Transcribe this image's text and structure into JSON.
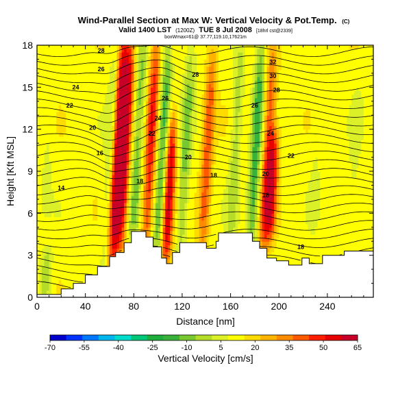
{
  "chart_data": {
    "type": "heatmap",
    "title": "Wind-Parallel Section at Max W: Vertical Velocity & Pot.Temp.",
    "title_mark": "(C)",
    "subtitle_main": "Valid 1400 LST",
    "subtitle_z": "(1200Z)",
    "subtitle_date": "TUE 8 Jul 2008",
    "subtitle_run": "[18hrl cst@2339]",
    "subtitle_loc": "boxWmax=61@ 37.77,119.10,17621m",
    "xlabel": "Distance [nm]",
    "ylabel": "Height [Kft MSL]",
    "xlim": [
      0,
      278
    ],
    "ylim": [
      0,
      18
    ],
    "xticks": [
      0,
      40,
      80,
      120,
      160,
      200,
      240
    ],
    "yticks": [
      0,
      3,
      6,
      9,
      12,
      15,
      18
    ],
    "colorbar": {
      "label": "Vertical Velocity [cm/s]",
      "ticks": [
        -70,
        -55,
        -40,
        -25,
        -10,
        5,
        20,
        35,
        50,
        65
      ],
      "range": [
        -70,
        65
      ],
      "colors": [
        "#0000cc",
        "#0033ff",
        "#0077ff",
        "#00b4ee",
        "#00dccc",
        "#00c878",
        "#1fae3a",
        "#38b23a",
        "#78c830",
        "#b4dc28",
        "#dcf028",
        "#ffff00",
        "#ffdc00",
        "#ffb400",
        "#ff8c00",
        "#ff5a00",
        "#ff1e00",
        "#e60000",
        "#c80028"
      ]
    },
    "fields": {
      "background_w": 12,
      "updrafts": [
        {
          "x": 66,
          "z_min": 3,
          "z_max": 18,
          "w": 55
        },
        {
          "x": 72,
          "z_min": 4,
          "z_max": 18,
          "w": 45
        },
        {
          "x": 93,
          "z_min": 4,
          "z_max": 18,
          "w": 38
        },
        {
          "x": 110,
          "z_min": 3,
          "z_max": 12,
          "w": 48
        },
        {
          "x": 140,
          "z_min": 4,
          "z_max": 17,
          "w": 30
        },
        {
          "x": 190,
          "z_min": 4,
          "z_max": 17,
          "w": 32
        },
        {
          "x": 195,
          "z_min": 5,
          "z_max": 11,
          "w": 40
        }
      ],
      "downdrafts": [
        {
          "x": 60,
          "z_min": 3,
          "z_max": 18,
          "w": -12
        },
        {
          "x": 82,
          "z_min": 4,
          "z_max": 18,
          "w": -22
        },
        {
          "x": 103,
          "z_min": 3,
          "z_max": 18,
          "w": -28
        },
        {
          "x": 122,
          "z_min": 3,
          "z_max": 18,
          "w": -20
        },
        {
          "x": 163,
          "z_min": 4,
          "z_max": 18,
          "w": -15
        },
        {
          "x": 180,
          "z_min": 4,
          "z_max": 18,
          "w": -30
        },
        {
          "x": 230,
          "z_min": 6,
          "z_max": 16,
          "w": -5
        },
        {
          "x": 262,
          "z_min": 6,
          "z_max": 14,
          "w": -6
        },
        {
          "x": 8,
          "z_min": 7,
          "z_max": 13,
          "w": -6
        },
        {
          "x": 12,
          "z_min": 0.2,
          "z_max": 2.5,
          "w": -18
        }
      ]
    },
    "terrain": [
      [
        0,
        0.2
      ],
      [
        20,
        0.2
      ],
      [
        20,
        0.6
      ],
      [
        30,
        0.6
      ],
      [
        30,
        1.0
      ],
      [
        40,
        1.0
      ],
      [
        40,
        1.6
      ],
      [
        50,
        1.6
      ],
      [
        50,
        2.2
      ],
      [
        60,
        2.2
      ],
      [
        60,
        2.9
      ],
      [
        65,
        2.9
      ],
      [
        65,
        3.2
      ],
      [
        72,
        3.2
      ],
      [
        72,
        3.9
      ],
      [
        78,
        3.9
      ],
      [
        78,
        4.7
      ],
      [
        90,
        4.7
      ],
      [
        90,
        4.3
      ],
      [
        96,
        4.3
      ],
      [
        96,
        3.6
      ],
      [
        103,
        3.6
      ],
      [
        103,
        2.8
      ],
      [
        107,
        2.8
      ],
      [
        107,
        2.4
      ],
      [
        112,
        2.4
      ],
      [
        112,
        3.2
      ],
      [
        118,
        3.2
      ],
      [
        118,
        3.9
      ],
      [
        140,
        3.9
      ],
      [
        140,
        3.5
      ],
      [
        148,
        3.5
      ],
      [
        148,
        4.0
      ],
      [
        150,
        4.0
      ],
      [
        150,
        4.6
      ],
      [
        178,
        4.6
      ],
      [
        178,
        4.0
      ],
      [
        184,
        4.0
      ],
      [
        184,
        3.5
      ],
      [
        190,
        3.5
      ],
      [
        190,
        2.8
      ],
      [
        198,
        2.8
      ],
      [
        198,
        2.6
      ],
      [
        208,
        2.6
      ],
      [
        208,
        2.3
      ],
      [
        219,
        2.3
      ],
      [
        219,
        2.8
      ],
      [
        225,
        2.8
      ],
      [
        225,
        2.4
      ],
      [
        236,
        2.4
      ],
      [
        236,
        3.0
      ],
      [
        254,
        3.0
      ],
      [
        254,
        3.3
      ],
      [
        278,
        3.3
      ],
      [
        278,
        0
      ],
      [
        0,
        0
      ]
    ],
    "theta_contours": {
      "interval": 1,
      "levels": [
        6,
        7,
        8,
        9,
        10,
        11,
        12,
        13,
        14,
        15,
        16,
        17,
        18,
        19,
        20,
        21,
        22,
        23,
        24,
        25,
        26,
        27,
        28,
        29,
        30,
        31,
        32,
        33
      ],
      "labels": [
        {
          "text": "14",
          "x": 20,
          "z": 7.8
        },
        {
          "text": "16",
          "x": 52,
          "z": 10.3
        },
        {
          "text": "18",
          "x": 85,
          "z": 8.3
        },
        {
          "text": "20",
          "x": 46,
          "z": 12.1
        },
        {
          "text": "22",
          "x": 27,
          "z": 13.7
        },
        {
          "text": "24",
          "x": 32,
          "z": 15.0
        },
        {
          "text": "26",
          "x": 53,
          "z": 16.3
        },
        {
          "text": "28",
          "x": 53,
          "z": 17.6
        },
        {
          "text": "20",
          "x": 125,
          "z": 10.0
        },
        {
          "text": "22",
          "x": 95,
          "z": 11.7
        },
        {
          "text": "24",
          "x": 100,
          "z": 12.8
        },
        {
          "text": "26",
          "x": 106,
          "z": 14.2
        },
        {
          "text": "28",
          "x": 131,
          "z": 15.9
        },
        {
          "text": "18",
          "x": 146,
          "z": 8.7
        },
        {
          "text": "20",
          "x": 189,
          "z": 8.8
        },
        {
          "text": "18",
          "x": 189,
          "z": 7.3
        },
        {
          "text": "24",
          "x": 193,
          "z": 11.7
        },
        {
          "text": "26",
          "x": 180,
          "z": 13.7
        },
        {
          "text": "28",
          "x": 198,
          "z": 14.8
        },
        {
          "text": "30",
          "x": 195,
          "z": 15.8
        },
        {
          "text": "32",
          "x": 195,
          "z": 16.8
        },
        {
          "text": "22",
          "x": 210,
          "z": 10.1
        },
        {
          "text": "18",
          "x": 218,
          "z": 3.6
        }
      ]
    }
  }
}
